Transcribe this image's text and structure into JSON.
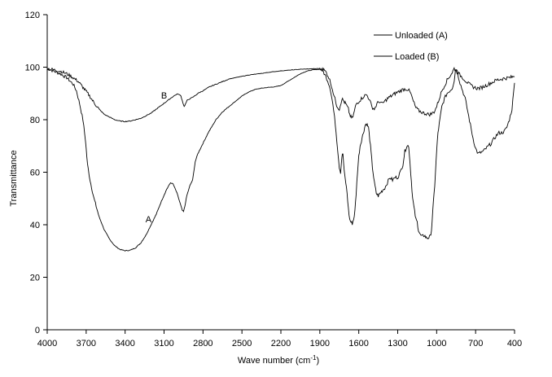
{
  "chart_data": {
    "type": "line",
    "xlabel": "Wave number (cm",
    "xlabel_sup": "-1",
    "xlabel_end": ")",
    "ylabel": "Transmittance",
    "xlim": [
      4000,
      400
    ],
    "ylim": [
      0,
      120
    ],
    "x_reversed": true,
    "x_ticks": [
      4000,
      3700,
      3400,
      3100,
      2800,
      2500,
      2200,
      1900,
      1600,
      1300,
      1000,
      700,
      400
    ],
    "y_ticks": [
      0,
      20,
      40,
      60,
      80,
      100,
      120
    ],
    "grid": false,
    "legend_position": "top-right",
    "series": [
      {
        "name": "Unloaded (A)",
        "marker": "A",
        "marker_at": [
          3220,
          41
        ],
        "color": "#000000",
        "points": [
          [
            4000,
            99.5
          ],
          [
            3950,
            98.5
          ],
          [
            3900,
            97.5
          ],
          [
            3850,
            96
          ],
          [
            3800,
            93.5
          ],
          [
            3775,
            91
          ],
          [
            3750,
            86
          ],
          [
            3725,
            80
          ],
          [
            3705,
            72
          ],
          [
            3690,
            63
          ],
          [
            3670,
            57
          ],
          [
            3640,
            50
          ],
          [
            3600,
            43
          ],
          [
            3560,
            38
          ],
          [
            3520,
            34.5
          ],
          [
            3480,
            32
          ],
          [
            3440,
            30.6
          ],
          [
            3400,
            30.1
          ],
          [
            3360,
            30.3
          ],
          [
            3320,
            31.2
          ],
          [
            3280,
            33
          ],
          [
            3240,
            36
          ],
          [
            3200,
            40
          ],
          [
            3160,
            44
          ],
          [
            3120,
            49
          ],
          [
            3080,
            53.5
          ],
          [
            3050,
            56
          ],
          [
            3030,
            55.5
          ],
          [
            3000,
            52
          ],
          [
            2975,
            48
          ],
          [
            2960,
            45.5
          ],
          [
            2950,
            45
          ],
          [
            2940,
            47
          ],
          [
            2925,
            51
          ],
          [
            2900,
            55
          ],
          [
            2880,
            57
          ],
          [
            2860,
            64
          ],
          [
            2840,
            67
          ],
          [
            2800,
            71
          ],
          [
            2760,
            75
          ],
          [
            2700,
            80
          ],
          [
            2650,
            83
          ],
          [
            2600,
            85
          ],
          [
            2550,
            87
          ],
          [
            2500,
            89
          ],
          [
            2450,
            90.5
          ],
          [
            2400,
            91.5
          ],
          [
            2350,
            92
          ],
          [
            2300,
            92.3
          ],
          [
            2250,
            92.5
          ],
          [
            2200,
            93
          ],
          [
            2150,
            94.5
          ],
          [
            2100,
            96
          ],
          [
            2050,
            97.5
          ],
          [
            2000,
            98.5
          ],
          [
            1950,
            99
          ],
          [
            1900,
            99.2
          ],
          [
            1880,
            99
          ],
          [
            1860,
            97
          ],
          [
            1840,
            95
          ],
          [
            1820,
            92
          ],
          [
            1800,
            86
          ],
          [
            1780,
            78
          ],
          [
            1765,
            70
          ],
          [
            1750,
            62
          ],
          [
            1740,
            60
          ],
          [
            1730,
            66
          ],
          [
            1722,
            67
          ],
          [
            1712,
            60
          ],
          [
            1700,
            56
          ],
          [
            1690,
            52
          ],
          [
            1680,
            46
          ],
          [
            1670,
            42
          ],
          [
            1660,
            41
          ],
          [
            1650,
            40.5
          ],
          [
            1640,
            42
          ],
          [
            1630,
            45
          ],
          [
            1620,
            52
          ],
          [
            1610,
            60
          ],
          [
            1600,
            66
          ],
          [
            1590,
            70
          ],
          [
            1580,
            72
          ],
          [
            1570,
            74
          ],
          [
            1560,
            76
          ],
          [
            1550,
            78
          ],
          [
            1540,
            78.5
          ],
          [
            1525,
            77
          ],
          [
            1510,
            70
          ],
          [
            1495,
            62
          ],
          [
            1480,
            56
          ],
          [
            1465,
            52
          ],
          [
            1450,
            51
          ],
          [
            1435,
            52
          ],
          [
            1420,
            53
          ],
          [
            1400,
            54
          ],
          [
            1380,
            56
          ],
          [
            1360,
            58
          ],
          [
            1340,
            57
          ],
          [
            1320,
            58
          ],
          [
            1300,
            58
          ],
          [
            1280,
            60
          ],
          [
            1260,
            63
          ],
          [
            1245,
            68
          ],
          [
            1230,
            70
          ],
          [
            1215,
            70
          ],
          [
            1200,
            60
          ],
          [
            1185,
            50
          ],
          [
            1170,
            45
          ],
          [
            1160,
            42
          ],
          [
            1150,
            41
          ],
          [
            1140,
            38
          ],
          [
            1125,
            36
          ],
          [
            1110,
            35.5
          ],
          [
            1095,
            36
          ],
          [
            1080,
            35
          ],
          [
            1065,
            35
          ],
          [
            1050,
            35.5
          ],
          [
            1040,
            38
          ],
          [
            1030,
            45
          ],
          [
            1015,
            55
          ],
          [
            1000,
            68
          ],
          [
            990,
            75
          ],
          [
            975,
            80
          ],
          [
            960,
            85
          ],
          [
            940,
            88
          ],
          [
            920,
            90
          ],
          [
            900,
            91
          ],
          [
            880,
            92
          ],
          [
            865,
            95
          ],
          [
            855,
            99
          ],
          [
            845,
            99.5
          ],
          [
            835,
            97
          ],
          [
            820,
            94
          ],
          [
            800,
            91
          ],
          [
            780,
            88
          ],
          [
            760,
            83
          ],
          [
            740,
            78
          ],
          [
            720,
            73
          ],
          [
            700,
            69
          ],
          [
            680,
            67
          ],
          [
            660,
            67.5
          ],
          [
            640,
            68
          ],
          [
            620,
            69
          ],
          [
            600,
            70
          ],
          [
            580,
            71
          ],
          [
            560,
            72.5
          ],
          [
            540,
            74
          ],
          [
            520,
            75
          ],
          [
            500,
            75
          ],
          [
            480,
            75.5
          ],
          [
            460,
            77
          ],
          [
            440,
            80
          ],
          [
            420,
            84
          ],
          [
            400,
            94
          ]
        ]
      },
      {
        "name": "Loaded (B)",
        "marker": "B",
        "marker_at": [
          3100,
          88
        ],
        "color": "#000000",
        "points": [
          [
            4000,
            99.5
          ],
          [
            3950,
            99
          ],
          [
            3900,
            98.5
          ],
          [
            3850,
            97.5
          ],
          [
            3800,
            96
          ],
          [
            3760,
            94.5
          ],
          [
            3720,
            92
          ],
          [
            3680,
            89.5
          ],
          [
            3640,
            86.5
          ],
          [
            3600,
            84
          ],
          [
            3560,
            82
          ],
          [
            3520,
            81
          ],
          [
            3480,
            80
          ],
          [
            3440,
            79.5
          ],
          [
            3400,
            79.3
          ],
          [
            3360,
            79.5
          ],
          [
            3320,
            80
          ],
          [
            3280,
            80.5
          ],
          [
            3240,
            81.5
          ],
          [
            3200,
            82.5
          ],
          [
            3160,
            84
          ],
          [
            3120,
            85.5
          ],
          [
            3080,
            87
          ],
          [
            3040,
            88.5
          ],
          [
            3010,
            89.5
          ],
          [
            2990,
            89.8
          ],
          [
            2970,
            89
          ],
          [
            2955,
            86.5
          ],
          [
            2945,
            85
          ],
          [
            2935,
            86
          ],
          [
            2920,
            87.5
          ],
          [
            2900,
            88
          ],
          [
            2880,
            88.5
          ],
          [
            2860,
            89.2
          ],
          [
            2840,
            90
          ],
          [
            2800,
            91
          ],
          [
            2750,
            92.5
          ],
          [
            2700,
            93.5
          ],
          [
            2650,
            94.5
          ],
          [
            2600,
            95.5
          ],
          [
            2550,
            96
          ],
          [
            2500,
            96.5
          ],
          [
            2450,
            97
          ],
          [
            2400,
            97.3
          ],
          [
            2350,
            97.6
          ],
          [
            2300,
            98
          ],
          [
            2250,
            98.3
          ],
          [
            2200,
            98.6
          ],
          [
            2150,
            98.8
          ],
          [
            2100,
            99
          ],
          [
            2050,
            99.2
          ],
          [
            2000,
            99.3
          ],
          [
            1950,
            99.4
          ],
          [
            1900,
            99.5
          ],
          [
            1870,
            99
          ],
          [
            1850,
            98
          ],
          [
            1830,
            96
          ],
          [
            1810,
            93
          ],
          [
            1790,
            89
          ],
          [
            1770,
            85.5
          ],
          [
            1750,
            84
          ],
          [
            1730,
            88
          ],
          [
            1715,
            87
          ],
          [
            1700,
            86
          ],
          [
            1690,
            85
          ],
          [
            1680,
            84
          ],
          [
            1670,
            82
          ],
          [
            1660,
            81
          ],
          [
            1650,
            80.5
          ],
          [
            1640,
            82
          ],
          [
            1630,
            84
          ],
          [
            1620,
            86
          ],
          [
            1600,
            87
          ],
          [
            1580,
            88
          ],
          [
            1560,
            89
          ],
          [
            1540,
            89.5
          ],
          [
            1520,
            88
          ],
          [
            1500,
            85
          ],
          [
            1480,
            84
          ],
          [
            1460,
            86
          ],
          [
            1440,
            87
          ],
          [
            1420,
            86
          ],
          [
            1400,
            87
          ],
          [
            1380,
            88
          ],
          [
            1350,
            89
          ],
          [
            1320,
            90
          ],
          [
            1300,
            90.5
          ],
          [
            1280,
            91
          ],
          [
            1260,
            91.5
          ],
          [
            1240,
            91.7
          ],
          [
            1220,
            91.5
          ],
          [
            1200,
            90
          ],
          [
            1180,
            87
          ],
          [
            1160,
            84.5
          ],
          [
            1140,
            83.5
          ],
          [
            1120,
            83
          ],
          [
            1100,
            82.5
          ],
          [
            1080,
            82.3
          ],
          [
            1060,
            82
          ],
          [
            1040,
            82.2
          ],
          [
            1020,
            83
          ],
          [
            1000,
            85
          ],
          [
            980,
            88
          ],
          [
            960,
            91
          ],
          [
            940,
            93
          ],
          [
            920,
            95
          ],
          [
            900,
            96.5
          ],
          [
            880,
            98
          ],
          [
            865,
            99.5
          ],
          [
            850,
            98.5
          ],
          [
            830,
            97.5
          ],
          [
            810,
            96.5
          ],
          [
            790,
            95.5
          ],
          [
            770,
            94.5
          ],
          [
            750,
            93.5
          ],
          [
            730,
            92.8
          ],
          [
            710,
            92.3
          ],
          [
            690,
            92
          ],
          [
            670,
            92
          ],
          [
            650,
            92.3
          ],
          [
            630,
            92.8
          ],
          [
            610,
            93.3
          ],
          [
            590,
            93.8
          ],
          [
            570,
            94.3
          ],
          [
            550,
            94.8
          ],
          [
            530,
            95.2
          ],
          [
            500,
            95.5
          ],
          [
            470,
            95.8
          ],
          [
            440,
            96
          ],
          [
            420,
            96.2
          ],
          [
            400,
            96.5
          ]
        ]
      }
    ]
  }
}
